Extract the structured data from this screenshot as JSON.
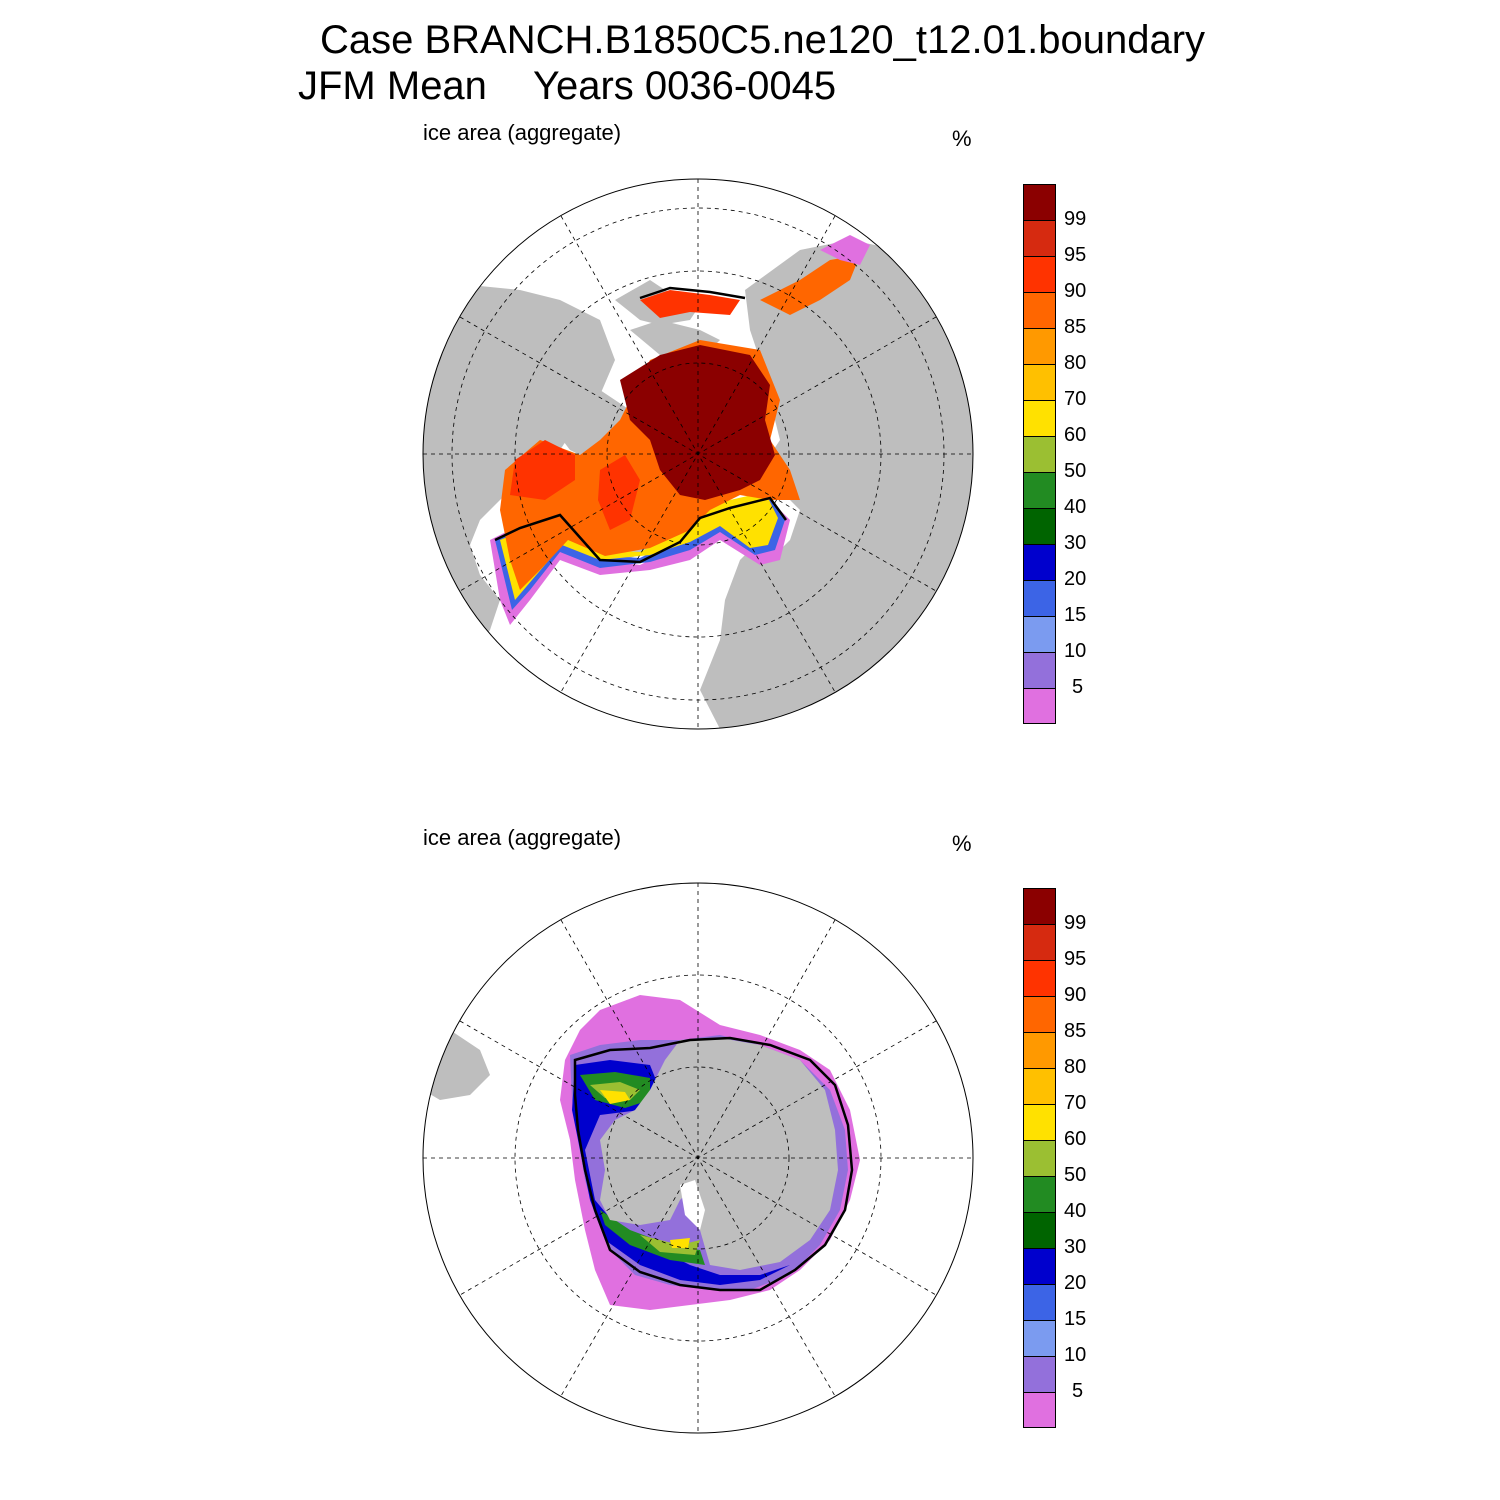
{
  "title": {
    "line1": "Case BRANCH.B1850C5.ne120_t12.01.boundary",
    "season": "JFM Mean",
    "years": "Years 0036-0045"
  },
  "panels": [
    {
      "id": "north",
      "label": "ice area  (aggregate)",
      "unit": "%",
      "hemisphere": "Northern"
    },
    {
      "id": "south",
      "label": "ice area  (aggregate)",
      "unit": "%",
      "hemisphere": "Southern"
    }
  ],
  "colorbar": {
    "levels": [
      "99",
      "95",
      "90",
      "85",
      "80",
      "70",
      "60",
      "50",
      "40",
      "30",
      "20",
      "15",
      "10",
      "5"
    ],
    "colors": [
      "#8b0000",
      "#d62a10",
      "#ff3300",
      "#ff6600",
      "#ff9900",
      "#ffc000",
      "#ffe100",
      "#9bbf32",
      "#228b22",
      "#006400",
      "#0000cd",
      "#3c64e6",
      "#7b9bf0",
      "#9370db",
      "#e070e0"
    ]
  },
  "map_colors": {
    "land": "#bebebe",
    "ocean": "#ffffff",
    "ice_max": "#8b0000"
  }
}
